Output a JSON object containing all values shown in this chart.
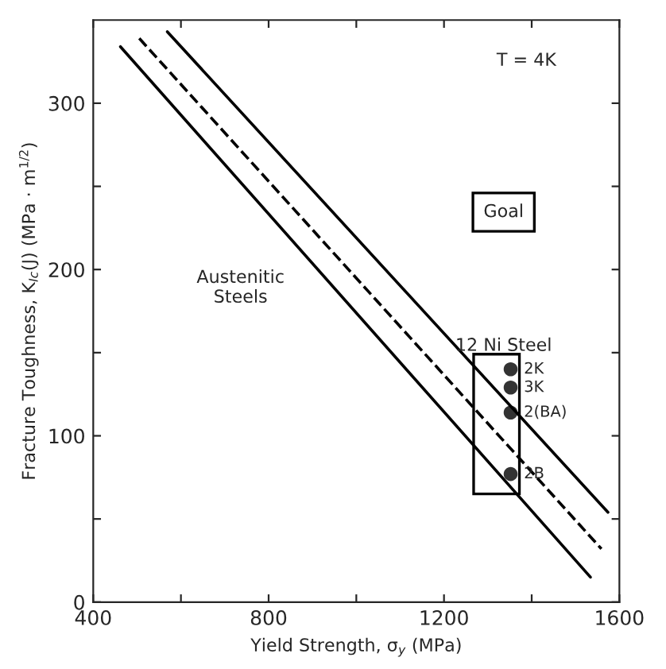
{
  "chart_data": {
    "type": "scatter",
    "xlabel": "Yield Strength, σ$_{y}$ (MPa)",
    "ylabel": "Fracture Toughness, K$_{Ic}$(J) (MPa · m$^{1/2}$)",
    "xlim": [
      400,
      1600
    ],
    "ylim": [
      0,
      350
    ],
    "xticks": [
      400,
      {
        "value": 600,
        "label": null
      },
      800,
      {
        "value": 1000,
        "label": null
      },
      1200,
      {
        "value": 1400,
        "label": null
      },
      1600
    ],
    "yticks": [
      0,
      {
        "value": 50,
        "label": null
      },
      100,
      {
        "value": 150,
        "label": null
      },
      200,
      {
        "value": 250,
        "label": null
      },
      300
    ],
    "grid": false,
    "legend": false,
    "series": [
      {
        "type": "line",
        "color": "#000000",
        "line_style": "solid",
        "marker": "none",
        "x": [
          462,
          1534
        ],
        "values": [
          334,
          15
        ]
      },
      {
        "type": "line",
        "color": "#000000",
        "line_style": "dashed",
        "marker": "none",
        "x": [
          505,
          1559
        ],
        "values": [
          339,
          32
        ]
      },
      {
        "type": "line",
        "color": "#000000",
        "line_style": "solid",
        "marker": "none",
        "x": [
          569,
          1574
        ],
        "values": [
          343,
          54
        ]
      },
      {
        "name": "2K",
        "color": "#333333",
        "marker": "circle",
        "x": [
          1352
        ],
        "values": [
          140
        ]
      },
      {
        "name": "3K",
        "color": "#333333",
        "marker": "circle",
        "x": [
          1352
        ],
        "values": [
          129
        ]
      },
      {
        "name": "2(BA)",
        "color": "#333333",
        "marker": "circle",
        "x": [
          1352
        ],
        "values": [
          114
        ]
      },
      {
        "name": "2B",
        "color": "#333333",
        "marker": "circle",
        "x": [
          1352
        ],
        "values": [
          77
        ]
      }
    ],
    "annotations": [
      "T = 4K",
      "Austenitic\nSteels",
      "12 Ni Steel",
      "Goal"
    ]
  }
}
